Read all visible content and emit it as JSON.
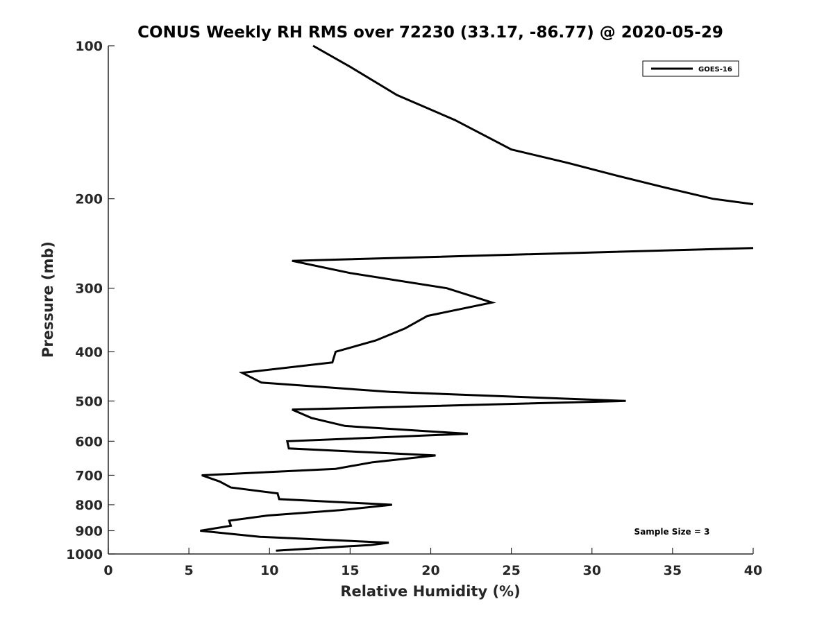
{
  "chart_data": {
    "type": "line",
    "title": "CONUS Weekly RH RMS over 72230 (33.17, -86.77) @ 2020-05-29",
    "xlabel": "Relative Humidity (%)",
    "ylabel": "Pressure (mb)",
    "xlim": [
      0,
      40
    ],
    "ylim": [
      1000,
      100
    ],
    "yscale": "log",
    "y_reversed": true,
    "grid": false,
    "legend_position": "top-right",
    "x_ticks": [
      0,
      5,
      10,
      15,
      20,
      25,
      30,
      35,
      40
    ],
    "y_ticks": [
      100,
      200,
      300,
      400,
      500,
      600,
      700,
      800,
      900,
      1000
    ],
    "annotation": "Sample Size = 3",
    "series": [
      {
        "name": "GOES-16",
        "color": "#000000",
        "segments": [
          [
            [
              12.7,
              100
            ],
            [
              15.0,
              110
            ],
            [
              17.9,
              125
            ],
            [
              21.5,
              140
            ],
            [
              25.0,
              160
            ],
            [
              28.5,
              170
            ],
            [
              31.5,
              180
            ],
            [
              34.5,
              190
            ],
            [
              37.5,
              200
            ],
            [
              40.0,
              205
            ]
          ],
          [
            [
              40.0,
              250
            ],
            [
              11.4,
              265
            ],
            [
              15.0,
              280
            ],
            [
              21.0,
              300
            ],
            [
              23.8,
              320
            ],
            [
              19.8,
              340
            ],
            [
              18.4,
              360
            ],
            [
              16.6,
              380
            ],
            [
              14.1,
              400
            ],
            [
              13.9,
              420
            ],
            [
              8.3,
              440
            ],
            [
              9.5,
              460
            ],
            [
              17.5,
              480
            ],
            [
              32.1,
              500
            ],
            [
              11.4,
              520
            ],
            [
              12.6,
              540
            ],
            [
              14.7,
              560
            ],
            [
              22.3,
              580
            ],
            [
              11.1,
              600
            ],
            [
              11.2,
              620
            ],
            [
              20.3,
              640
            ],
            [
              16.4,
              660
            ],
            [
              14.1,
              680
            ],
            [
              5.8,
              700
            ],
            [
              6.9,
              720
            ],
            [
              7.6,
              740
            ],
            [
              10.5,
              760
            ],
            [
              10.6,
              780
            ],
            [
              17.6,
              800
            ],
            [
              14.4,
              820
            ],
            [
              9.9,
              840
            ],
            [
              7.5,
              860
            ],
            [
              7.6,
              880
            ],
            [
              5.7,
              900
            ],
            [
              9.4,
              925
            ],
            [
              17.4,
              950
            ],
            [
              16.3,
              960
            ],
            [
              10.4,
              985
            ]
          ]
        ]
      }
    ]
  }
}
